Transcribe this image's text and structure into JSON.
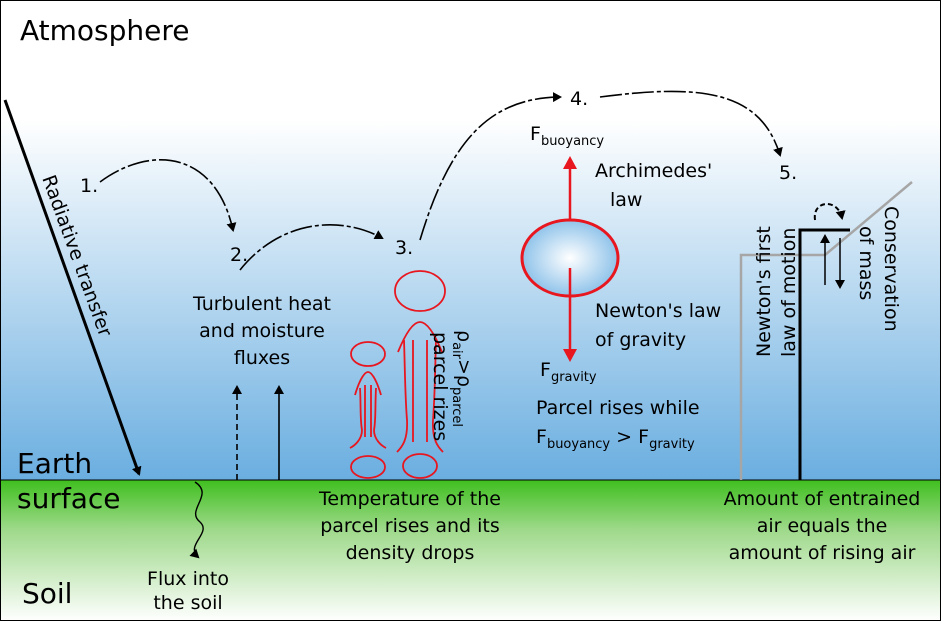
{
  "colors": {
    "sky_top": "#ffffff",
    "sky_bottom": "#6aaee0",
    "ground_top": "#3fbf1f",
    "ground_bottom": "#ffffff",
    "parcel": "#e8161f",
    "gray_line": "#a6a6a6"
  },
  "layers": {
    "atmosphere": "Atmosphere",
    "earth": "Earth",
    "surface": "surface",
    "soil": "Soil"
  },
  "radiative_transfer": "Radiative transfer",
  "steps": [
    "1.",
    "2.",
    "3.",
    "4.",
    "5."
  ],
  "step2": {
    "line1": "Turbulent heat",
    "line2": "and moisture",
    "line3": "fluxes"
  },
  "soil_flux": {
    "line1": "Flux into",
    "line2": "the soil"
  },
  "step3": {
    "density": {
      "rho": "ρ",
      "air_sub": "air",
      "gt": ">ρ",
      "parcel_sub": "parcel"
    },
    "parcel_rizes": "parcel rizes",
    "caption_line1": "Temperature of the",
    "caption_line2": "parcel rises and its",
    "caption_line3": "density drops"
  },
  "step4": {
    "f_buoyancy": {
      "f": "F",
      "sub": "buoyancy"
    },
    "archimedes_line1": "Archimedes'",
    "archimedes_line2": "law",
    "newton_line1": "Newton's law",
    "newton_line2": "of gravity",
    "f_gravity": {
      "f": "F",
      "sub": "gravity"
    },
    "rises_line1": "Parcel rises while",
    "rises_line2": {
      "f1": "F",
      "sub1": "buoyancy",
      "gt": " > F",
      "sub2": "gravity"
    }
  },
  "step5": {
    "newton_first_line1": "Newton's first",
    "newton_first_line2": "law of motion",
    "conservation_line1": "Conservation",
    "conservation_line2": "of mass",
    "caption_line1": "Amount of entrained",
    "caption_line2": "air equals the",
    "caption_line3": "amount of rising air"
  }
}
